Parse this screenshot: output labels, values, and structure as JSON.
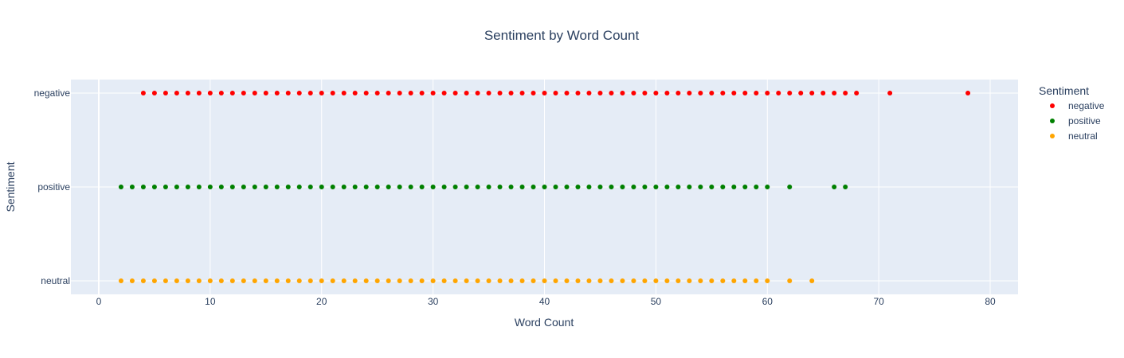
{
  "chart_data": {
    "type": "scatter",
    "title": "Sentiment by Word Count",
    "xlabel": "Word Count",
    "ylabel": "Sentiment",
    "xlim": [
      -2.5,
      82.5
    ],
    "xticks": [
      0,
      10,
      20,
      30,
      40,
      50,
      60,
      70,
      80
    ],
    "categories": [
      "negative",
      "positive",
      "neutral"
    ],
    "grid": true,
    "legend": {
      "title": "Sentiment",
      "placement": "right"
    },
    "series": [
      {
        "name": "negative",
        "color": "#ff0000",
        "x": [
          4,
          5,
          6,
          7,
          8,
          9,
          10,
          11,
          12,
          13,
          14,
          15,
          16,
          17,
          18,
          19,
          20,
          21,
          22,
          23,
          24,
          25,
          26,
          27,
          28,
          29,
          30,
          31,
          32,
          33,
          34,
          35,
          36,
          37,
          38,
          39,
          40,
          41,
          42,
          43,
          44,
          45,
          46,
          47,
          48,
          49,
          50,
          51,
          52,
          53,
          54,
          55,
          56,
          57,
          58,
          59,
          60,
          61,
          62,
          63,
          64,
          65,
          66,
          67,
          68,
          71,
          78
        ]
      },
      {
        "name": "positive",
        "color": "#008000",
        "x": [
          2,
          3,
          4,
          5,
          6,
          7,
          8,
          9,
          10,
          11,
          12,
          13,
          14,
          15,
          16,
          17,
          18,
          19,
          20,
          21,
          22,
          23,
          24,
          25,
          26,
          27,
          28,
          29,
          30,
          31,
          32,
          33,
          34,
          35,
          36,
          37,
          38,
          39,
          40,
          41,
          42,
          43,
          44,
          45,
          46,
          47,
          48,
          49,
          50,
          51,
          52,
          53,
          54,
          55,
          56,
          57,
          58,
          59,
          60,
          62,
          66,
          67
        ]
      },
      {
        "name": "neutral",
        "color": "#ffa500",
        "x": [
          2,
          3,
          4,
          5,
          6,
          7,
          8,
          9,
          10,
          11,
          12,
          13,
          14,
          15,
          16,
          17,
          18,
          19,
          20,
          21,
          22,
          23,
          24,
          25,
          26,
          27,
          28,
          29,
          30,
          31,
          32,
          33,
          34,
          35,
          36,
          37,
          38,
          39,
          40,
          41,
          42,
          43,
          44,
          45,
          46,
          47,
          48,
          49,
          50,
          51,
          52,
          53,
          54,
          55,
          56,
          57,
          58,
          59,
          60,
          62,
          64
        ]
      }
    ]
  }
}
